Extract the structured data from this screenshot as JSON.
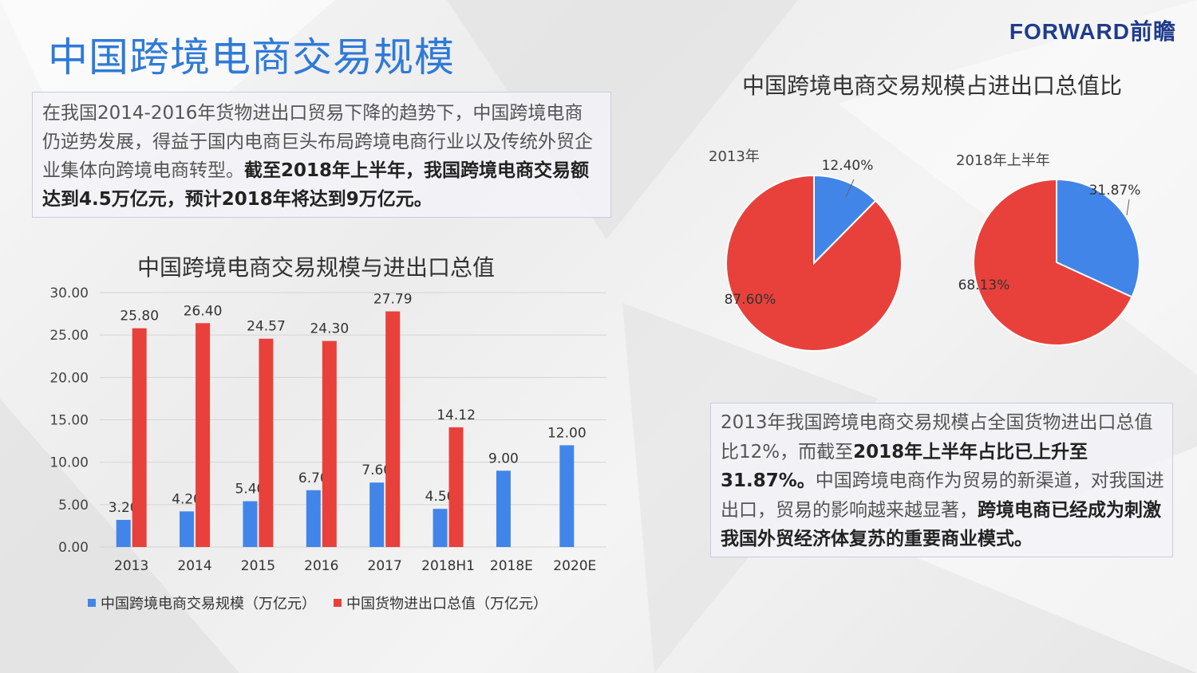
{
  "page": {
    "title": "中国跨境电商交易规模",
    "logo": "FORWARD前瞻"
  },
  "left_text": {
    "normal": "在我国2014-2016年货物进出口贸易下降的趋势下，中国跨境电商仍逆势发展，得益于国内电商巨头布局跨境电商行业以及传统外贸企业集体向跨境电商转型。",
    "bold": "截至2018年上半年，我国跨境电商交易额达到4.5万亿元，预计2018年将达到9万亿元。"
  },
  "right_text": {
    "part1": "2013年我国跨境电商交易规模占全国货物进出口总值比12%，而截至",
    "part2_bold": "2018年上半年占比已上升至31.87%。",
    "part3": "中国跨境电商作为贸易的新渠道，对我国进出口，贸易的影响越来越显著，",
    "part4_bold": "跨境电商已经成为刺激我国外贸经济体复苏的重要商业模式。"
  },
  "colors": {
    "blue": "#4285e9",
    "red": "#e8413b",
    "title_blue": "#2f7ad8"
  },
  "chart_data": [
    {
      "type": "bar",
      "title": "中国跨境电商交易规模与进出口总值",
      "categories": [
        "2013",
        "2014",
        "2015",
        "2016",
        "2017",
        "2018H1",
        "2018E",
        "2020E"
      ],
      "series": [
        {
          "name": "中国跨境电商交易规模（万亿元）",
          "values": [
            3.2,
            4.2,
            5.4,
            6.7,
            7.6,
            4.5,
            9.0,
            12.0
          ],
          "labels": [
            "3.20",
            "4.20",
            "5.40",
            "6.70",
            "7.60",
            "4.50",
            "9.00",
            "12.00"
          ]
        },
        {
          "name": "中国货物进出口总值（万亿元）",
          "values": [
            25.8,
            26.4,
            24.57,
            24.3,
            27.79,
            14.12,
            null,
            null
          ],
          "labels": [
            "25.80",
            "26.40",
            "24.57",
            "24.30",
            "27.79",
            "14.12",
            "",
            ""
          ]
        }
      ],
      "ylim": [
        0,
        30
      ],
      "yticks": [
        "0.00",
        "5.00",
        "10.00",
        "15.00",
        "20.00",
        "25.00",
        "30.00"
      ],
      "legend": "bottom"
    },
    {
      "type": "pie",
      "title": "中国跨境电商交易规模占进出口总值比",
      "pies": [
        {
          "name": "2013年",
          "slices": [
            {
              "value": 12.4,
              "label": "12.40%",
              "color": "#4285e9"
            },
            {
              "value": 87.6,
              "label": "87.60%",
              "color": "#e8413b"
            }
          ]
        },
        {
          "name": "2018年上半年",
          "slices": [
            {
              "value": 31.87,
              "label": "31.87%",
              "color": "#4285e9"
            },
            {
              "value": 68.13,
              "label": "68.13%",
              "color": "#e8413b"
            }
          ]
        }
      ]
    }
  ]
}
